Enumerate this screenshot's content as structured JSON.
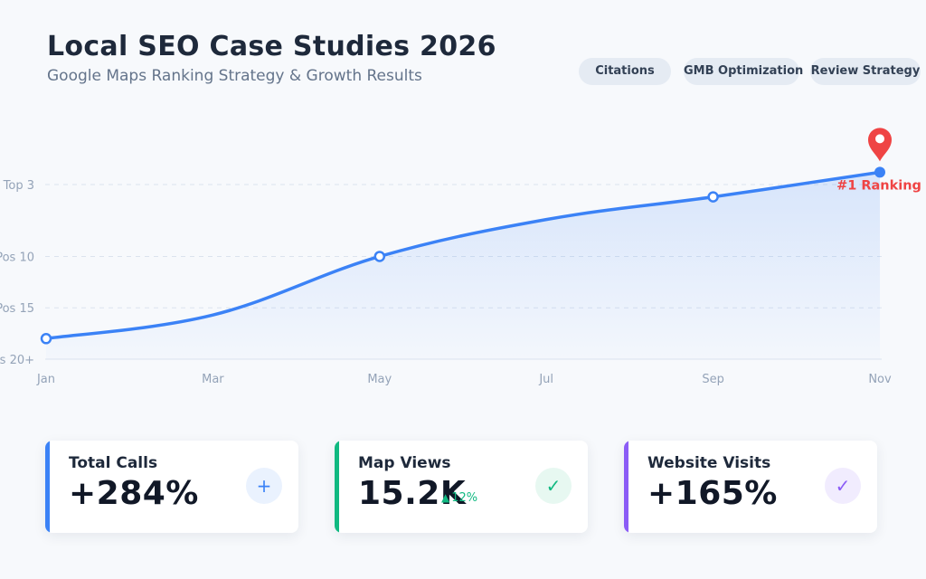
{
  "header": {
    "title": "Local SEO Case Studies 2026",
    "subtitle": "Google Maps Ranking Strategy & Growth Results"
  },
  "tags": [
    "Citations",
    "GMB Optimization",
    "Review Strategy"
  ],
  "chart_data": {
    "type": "area",
    "x": [
      "Jan",
      "Mar",
      "May",
      "Jul",
      "Sep",
      "Nov"
    ],
    "y_ticks": [
      "Pos 20+",
      "Pos 15",
      "Pos 10",
      "Top 3"
    ],
    "y_tick_values": [
      20,
      15,
      10,
      3
    ],
    "ylim": [
      20,
      1
    ],
    "series": [
      {
        "color": "#3b82f6",
        "points": [
          {
            "x": "Jan",
            "y": 18,
            "marker": true
          },
          {
            "x": "Mar",
            "y": 15.7,
            "marker": false
          },
          {
            "x": "May",
            "y": 10,
            "marker": true
          },
          {
            "x": "Jul",
            "y": 6.4,
            "marker": false
          },
          {
            "x": "Sep",
            "y": 4.2,
            "marker": true
          },
          {
            "x": "Nov",
            "y": 1.8,
            "marker": true
          }
        ]
      }
    ],
    "annotation": {
      "x": "Nov",
      "text": "#1 Ranking",
      "color": "#ef4444"
    },
    "grid": true
  },
  "cards": [
    {
      "label": "Total Calls",
      "value": "+284%",
      "icon": "plus-icon",
      "glyph": "+",
      "accent": "#3b82f6"
    },
    {
      "label": "Map Views",
      "value": "15.2K",
      "delta": "12%",
      "delta_arrow": "▲",
      "icon": "check-icon",
      "glyph": "✓",
      "accent": "#10b981"
    },
    {
      "label": "Website Visits",
      "value": "+165%",
      "icon": "check-icon",
      "glyph": "✓",
      "accent": "#8b5cf6"
    }
  ]
}
